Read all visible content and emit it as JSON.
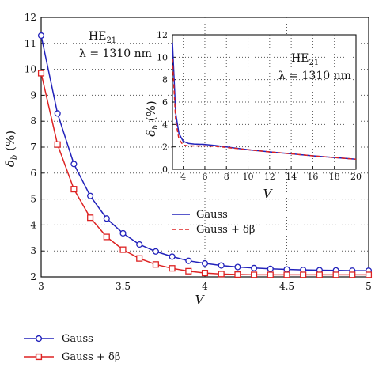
{
  "colors": {
    "gauss": "#2222bb",
    "gauss_db": "#dd2222",
    "grid": "#555555",
    "axis": "#111111"
  },
  "chart_data": [
    {
      "type": "line",
      "xlabel": "V",
      "ylabel": "δ_b (%)",
      "xlim": [
        3,
        5
      ],
      "ylim": [
        2,
        12
      ],
      "xticks": [
        "3",
        "3.5",
        "4",
        "4.5",
        "5"
      ],
      "yticks": [
        "2",
        "3",
        "4",
        "5",
        "6",
        "7",
        "8",
        "9",
        "10",
        "11",
        "12"
      ],
      "grid": true,
      "legend_position": "below plot",
      "annotation": {
        "mode": "HE",
        "mode_sub": "21",
        "wavelength": "λ = 1310 nm"
      },
      "series": [
        {
          "name": "Gauss",
          "marker": "circle",
          "x": [
            3.0,
            3.1,
            3.2,
            3.3,
            3.4,
            3.5,
            3.6,
            3.7,
            3.8,
            3.9,
            4.0,
            4.1,
            4.2,
            4.3,
            4.4,
            4.5,
            4.6,
            4.7,
            4.8,
            4.9,
            5.0
          ],
          "y": [
            11.3,
            8.3,
            6.35,
            5.12,
            4.25,
            3.68,
            3.25,
            2.98,
            2.78,
            2.62,
            2.52,
            2.44,
            2.38,
            2.34,
            2.31,
            2.29,
            2.27,
            2.26,
            2.25,
            2.24,
            2.24
          ]
        },
        {
          "name": "Gauss + δβ",
          "marker": "square",
          "x": [
            3.0,
            3.1,
            3.2,
            3.3,
            3.4,
            3.5,
            3.6,
            3.7,
            3.8,
            3.9,
            4.0,
            4.1,
            4.2,
            4.3,
            4.4,
            4.5,
            4.6,
            4.7,
            4.8,
            4.9,
            5.0
          ],
          "y": [
            9.85,
            7.1,
            5.38,
            4.28,
            3.54,
            3.05,
            2.71,
            2.48,
            2.33,
            2.22,
            2.15,
            2.11,
            2.09,
            2.08,
            2.08,
            2.08,
            2.08,
            2.08,
            2.08,
            2.08,
            2.08
          ]
        }
      ]
    },
    {
      "type": "line",
      "xlabel": "V",
      "ylabel": "δ_b (%)",
      "xlim": [
        3,
        20
      ],
      "ylim": [
        0,
        12
      ],
      "xticks": [
        "4",
        "6",
        "8",
        "10",
        "12",
        "14",
        "16",
        "18",
        "20"
      ],
      "yticks": [
        "0",
        "2",
        "4",
        "6",
        "8",
        "10",
        "12"
      ],
      "grid": true,
      "legend_position": "below plot",
      "annotation": {
        "mode": "HE",
        "mode_sub": "21",
        "wavelength": "λ = 1310 nm"
      },
      "series": [
        {
          "name": "Gauss",
          "style": "solid",
          "x": [
            3.0,
            3.3,
            3.6,
            4.0,
            4.5,
            5.0,
            6.0,
            7.0,
            8.0,
            10.0,
            12.0,
            14.0,
            16.0,
            18.0,
            20.0
          ],
          "y": [
            11.3,
            5.0,
            3.2,
            2.5,
            2.3,
            2.25,
            2.22,
            2.12,
            2.0,
            1.75,
            1.55,
            1.38,
            1.2,
            1.05,
            0.9
          ]
        },
        {
          "name": "Gauss + δβ",
          "style": "dashed",
          "x": [
            3.0,
            3.3,
            3.6,
            4.0,
            4.5,
            5.0,
            6.0,
            7.0,
            8.0,
            10.0,
            12.0,
            14.0,
            16.0,
            18.0,
            20.0
          ],
          "y": [
            9.85,
            4.3,
            2.7,
            2.15,
            2.08,
            2.08,
            2.08,
            2.05,
            1.95,
            1.75,
            1.55,
            1.38,
            1.2,
            1.05,
            0.9
          ]
        }
      ]
    }
  ]
}
